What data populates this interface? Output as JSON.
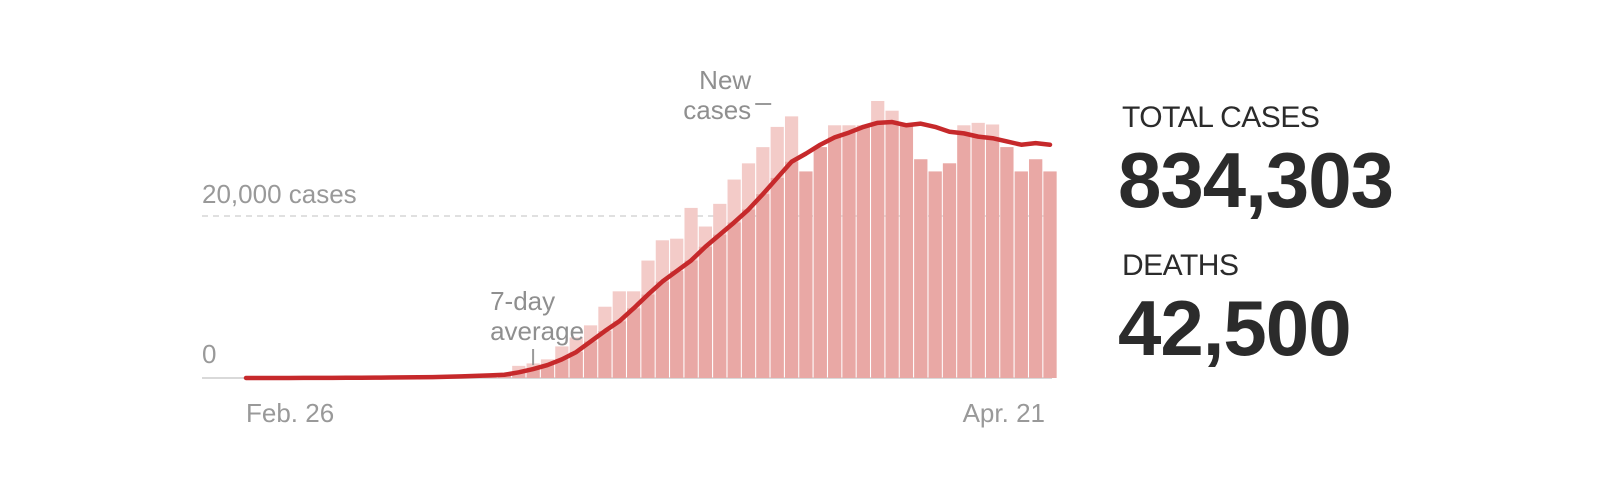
{
  "chart_data": {
    "type": "bar",
    "x_start_label": "Feb. 26",
    "x_end_label": "Apr. 21",
    "y_ticks": [
      {
        "value": 0,
        "label": "0"
      },
      {
        "value": 20000,
        "label": "20,000 cases"
      }
    ],
    "ylim": [
      0,
      35000
    ],
    "grid": "dashed reference line at 20,000",
    "annotations": {
      "bars_label": "New cases",
      "line_label": "7-day average"
    },
    "series": [
      {
        "name": "New cases",
        "kind": "bar",
        "values": [
          5,
          5,
          5,
          10,
          10,
          20,
          30,
          40,
          50,
          60,
          70,
          90,
          110,
          150,
          200,
          280,
          350,
          450,
          500,
          1500,
          1800,
          2300,
          3900,
          5000,
          6500,
          8800,
          10700,
          10700,
          14500,
          17000,
          17200,
          21000,
          18700,
          21500,
          24500,
          26500,
          28500,
          31000,
          32300,
          25500,
          28500,
          31200,
          31200,
          31200,
          34200,
          33000,
          31200,
          27000,
          25500,
          26500,
          31200,
          31500,
          31300,
          28500,
          25500,
          27000,
          25500
        ]
      },
      {
        "name": "7-day average",
        "kind": "line",
        "values": [
          5,
          5,
          6,
          8,
          10,
          13,
          18,
          25,
          35,
          45,
          55,
          70,
          90,
          110,
          150,
          200,
          260,
          320,
          400,
          700,
          1100,
          1600,
          2300,
          3200,
          4500,
          5800,
          7000,
          8600,
          10300,
          11900,
          13200,
          14500,
          16200,
          17700,
          19200,
          20800,
          22700,
          24700,
          26700,
          27700,
          28800,
          29700,
          30300,
          31000,
          31500,
          31600,
          31200,
          31400,
          31000,
          30400,
          30200,
          29800,
          29600,
          29200,
          28800,
          29000,
          28800
        ]
      }
    ]
  },
  "stats": {
    "total_cases_label": "TOTAL CASES",
    "total_cases_value": "834,303",
    "deaths_label": "DEATHS",
    "deaths_value": "42,500"
  },
  "colors": {
    "bar_fill": "#f3cbc8",
    "bar_fill_under_line": "#e9a8a5",
    "line": "#c6292b",
    "text_muted": "#999999",
    "stat_text": "#2b2b2b"
  }
}
